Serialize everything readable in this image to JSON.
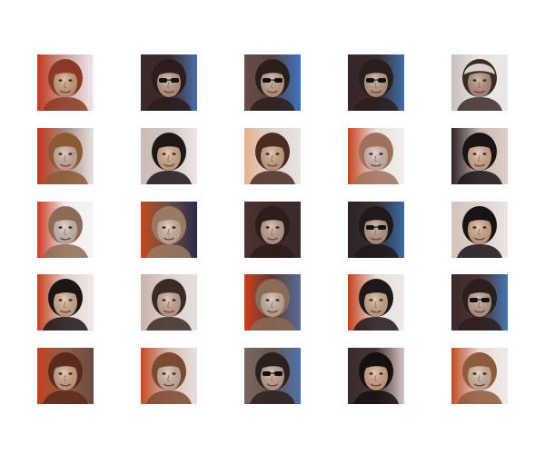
{
  "grid": {
    "rows": 5,
    "cols": 5,
    "tiles": [
      {
        "bg": "#c9a3a0",
        "left": "#c5381d",
        "right": "#f1e7ea",
        "hair": "#8a3a24",
        "skin": "#d3a37e",
        "glasses": false,
        "cap": false
      },
      {
        "bg": "#3d2a2c",
        "left": "#3a2a27",
        "right": "#4a6fa8",
        "hair": "#2a1d1b",
        "skin": "#c3a08c",
        "glasses": true,
        "cap": false
      },
      {
        "bg": "#5a4240",
        "left": "#6a4b44",
        "right": "#3c74c4",
        "hair": "#2a1e1c",
        "skin": "#c7a692",
        "glasses": true,
        "cap": false
      },
      {
        "bg": "#3b2a2b",
        "left": "#352826",
        "right": "#3d6fa8",
        "hair": "#2b1f1d",
        "skin": "#c29f8c",
        "glasses": true,
        "cap": false
      },
      {
        "bg": "#e9e5e2",
        "left": "#c7c0bd",
        "right": "#eae6e3",
        "hair": "#3a2a28",
        "skin": "#b99683",
        "glasses": false,
        "cap": true
      },
      {
        "bg": "#a68c87",
        "left": "#c4361a",
        "right": "#e9e3e0",
        "hair": "#8d5a36",
        "skin": "#d5b2a3",
        "glasses": false,
        "cap": false
      },
      {
        "bg": "#d2c6c1",
        "left": "#cbbbb4",
        "right": "#ede8e5",
        "hair": "#1f1819",
        "skin": "#d9b08f",
        "glasses": false,
        "cap": false
      },
      {
        "bg": "#ddd6d2",
        "left": "#e6b18f",
        "right": "#e7e3e0",
        "hair": "#4a2c22",
        "skin": "#d4ab8d",
        "glasses": false,
        "cap": false
      },
      {
        "bg": "#e8e1de",
        "left": "#c8431e",
        "right": "#f3efed",
        "hair": "#a0705a",
        "skin": "#d8c0b5",
        "glasses": false,
        "cap": false
      },
      {
        "bg": "#c9b9b4",
        "left": "#2c2223",
        "right": "#e0cdc7",
        "hair": "#1b1415",
        "skin": "#dcb091",
        "glasses": false,
        "cap": false
      },
      {
        "bg": "#efebea",
        "left": "#cc3a22",
        "right": "#f7f4f3",
        "hair": "#8c6a55",
        "skin": "#d7c2b8",
        "glasses": false,
        "cap": false
      },
      {
        "bg": "#6a4c49",
        "left": "#c24a1c",
        "right": "#2b2a4a",
        "hair": "#9a7a62",
        "skin": "#d7b9a7",
        "glasses": false,
        "cap": false
      },
      {
        "bg": "#3c2a28",
        "left": "#4d3430",
        "right": "#3a2a2a",
        "hair": "#2b1d1b",
        "skin": "#c7a595",
        "glasses": false,
        "cap": false
      },
      {
        "bg": "#3a2f33",
        "left": "#2b2324",
        "right": "#3b69a5",
        "hair": "#201819",
        "skin": "#c09f8e",
        "glasses": true,
        "cap": false
      },
      {
        "bg": "#d9cfca",
        "left": "#d6c4bd",
        "right": "#ebe6e4",
        "hair": "#1a1314",
        "skin": "#d9af8d",
        "glasses": false,
        "cap": false
      },
      {
        "bg": "#e0d3cd",
        "left": "#c5401d",
        "right": "#eee8e6",
        "hair": "#1c1516",
        "skin": "#dbb293",
        "glasses": false,
        "cap": false
      },
      {
        "bg": "#ddd3ce",
        "left": "#c8b4a8",
        "right": "#e4dfdc",
        "hair": "#3a2a25",
        "skin": "#d0ad99",
        "glasses": false,
        "cap": false
      },
      {
        "bg": "#5c3a34",
        "left": "#cc3d1d",
        "right": "#5a6d9a",
        "hair": "#8b6a57",
        "skin": "#d1b6a6",
        "glasses": false,
        "cap": false
      },
      {
        "bg": "#e6dedb",
        "left": "#c8401d",
        "right": "#eee9e7",
        "hair": "#1f1718",
        "skin": "#d6ad90",
        "glasses": false,
        "cap": false
      },
      {
        "bg": "#4a3432",
        "left": "#3c2a28",
        "right": "#4775b5",
        "hair": "#2b1f1d",
        "skin": "#c3a494",
        "glasses": true,
        "cap": false
      },
      {
        "bg": "#8a5e48",
        "left": "#c3421e",
        "right": "#6c4a3c",
        "hair": "#5a2a1e",
        "skin": "#d9a98b",
        "glasses": false,
        "cap": false
      },
      {
        "bg": "#d4bcb2",
        "left": "#c64a24",
        "right": "#e9e1de",
        "hair": "#7b4a33",
        "skin": "#d7b8a8",
        "glasses": false,
        "cap": false
      },
      {
        "bg": "#6a5650",
        "left": "#7a665f",
        "right": "#4b72b0",
        "hair": "#2b201e",
        "skin": "#c6a898",
        "glasses": true,
        "cap": false
      },
      {
        "bg": "#4a3535",
        "left": "#3a2b2c",
        "right": "#d6c5c0",
        "hair": "#161011",
        "skin": "#d6aa8c",
        "glasses": false,
        "cap": false
      },
      {
        "bg": "#e7dcd7",
        "left": "#c34b25",
        "right": "#f0ebe9",
        "hair": "#8e5b3c",
        "skin": "#dab8a5",
        "glasses": false,
        "cap": false
      }
    ]
  }
}
